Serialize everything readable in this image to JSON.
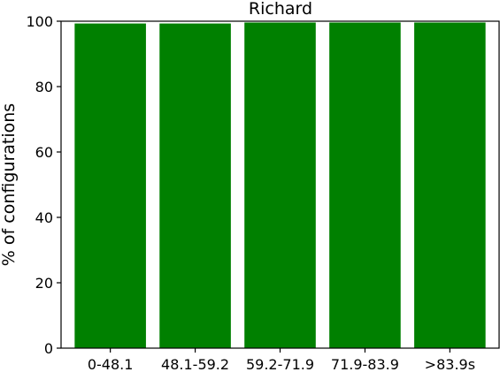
{
  "chart_data": {
    "type": "bar",
    "title": "Richard",
    "xlabel": "",
    "ylabel": "% of configurations",
    "categories": [
      "0-48.1",
      "48.1-59.2",
      "59.2-71.9",
      "71.9-83.9",
      ">83.9s"
    ],
    "values": [
      99.3,
      99.3,
      99.6,
      99.6,
      99.6
    ],
    "ylim": [
      0,
      100
    ],
    "yticks": [
      0,
      20,
      40,
      60,
      80,
      100
    ],
    "grid": false,
    "legend": "none",
    "bar_color": "#008000"
  }
}
